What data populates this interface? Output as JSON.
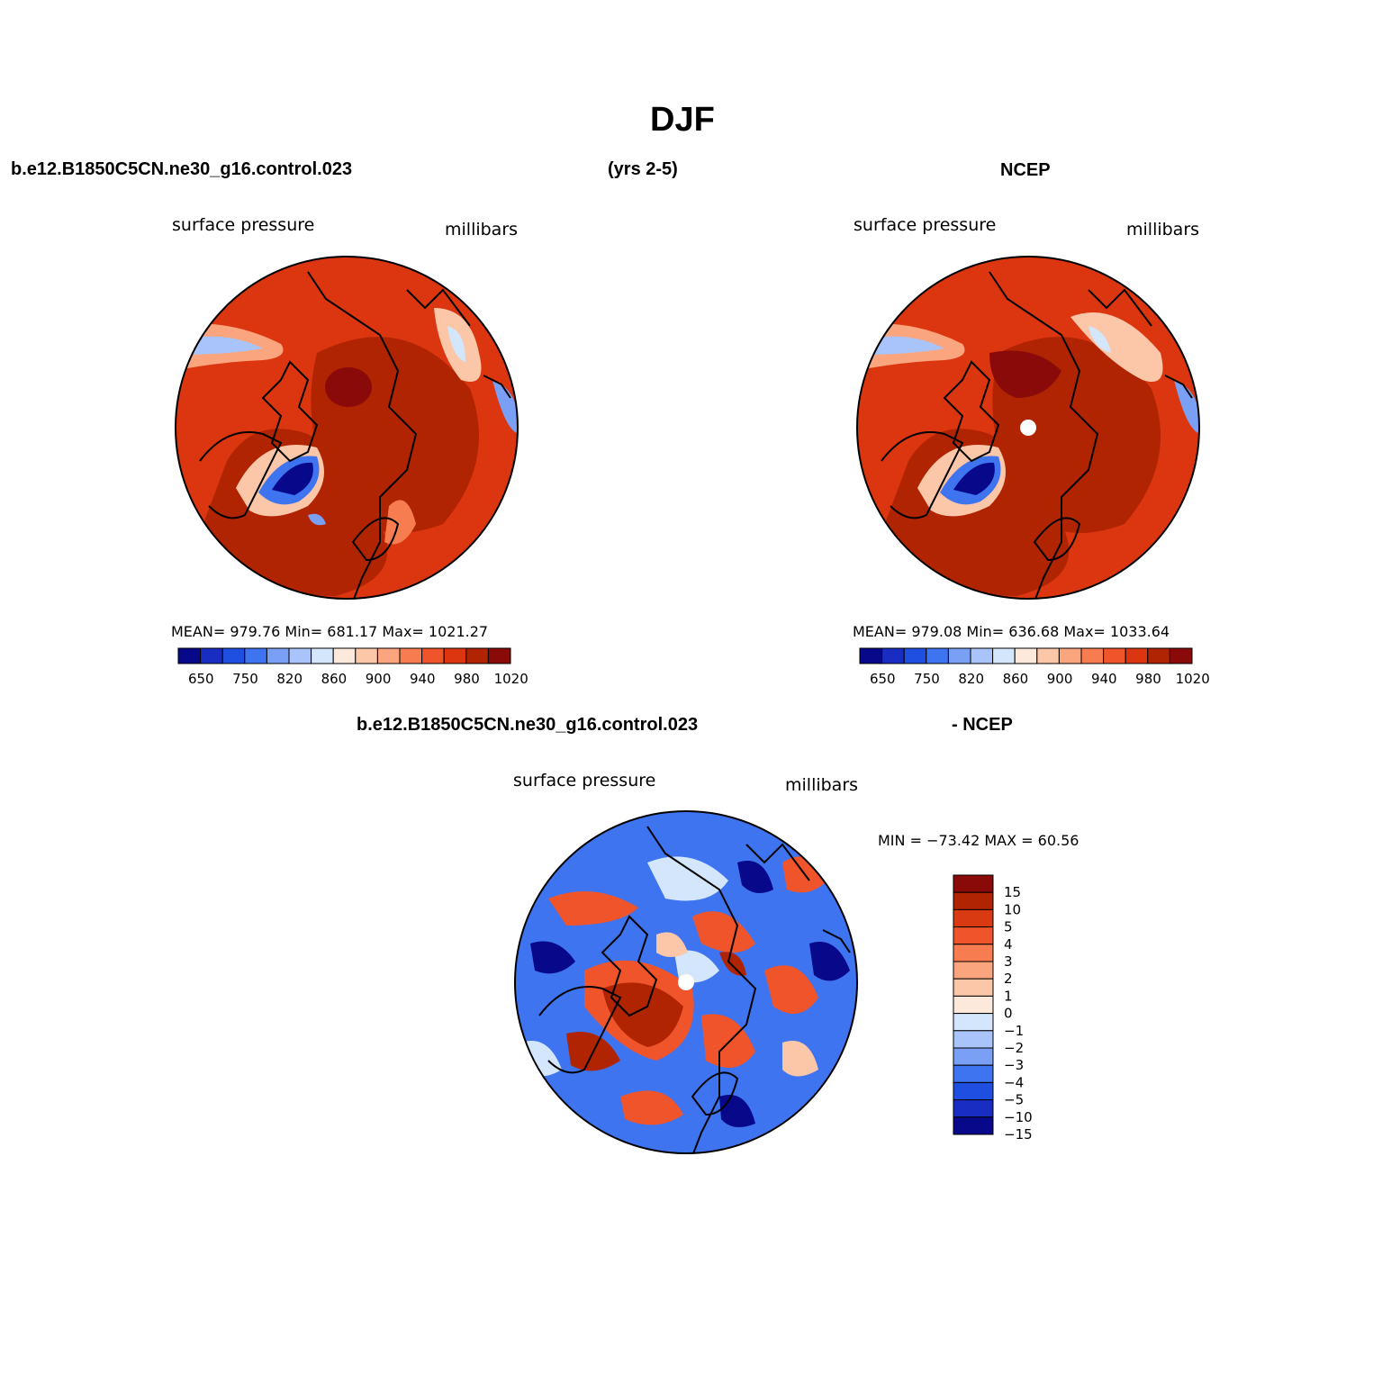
{
  "page": {
    "title": "DJF",
    "case_name": "b.e12.B1850C5CN.ne30_g16.control.023",
    "years": "(yrs 2-5)",
    "obs_name": "NCEP"
  },
  "panels": [
    {
      "left_label": "surface pressure",
      "right_label": "millibars",
      "stats_text": "MEAN= 979.76   Min= 681.17   Max= 1021.27",
      "mean": 979.76,
      "min": 681.17,
      "max": 1021.27,
      "pole_marker": false
    },
    {
      "left_label": "surface pressure",
      "right_label": "millibars",
      "stats_text": "MEAN= 979.08   Min= 636.68   Max= 1033.64",
      "mean": 979.08,
      "min": 636.68,
      "max": 1033.64,
      "pole_marker": true
    }
  ],
  "abs_colorbar": {
    "colors": [
      "#08088a",
      "#1a2dc2",
      "#1f4fe0",
      "#3f74f0",
      "#7aa0f5",
      "#a8c4fa",
      "#d4e6fc",
      "#fde9dc",
      "#fcc6a8",
      "#fba57e",
      "#f77c50",
      "#f0542a",
      "#dc3610",
      "#b02402",
      "#8a0a0a"
    ],
    "tick_labels": [
      "650",
      "750",
      "820",
      "860",
      "900",
      "940",
      "980",
      "1020"
    ]
  },
  "diff_panel": {
    "title_left": "b.e12.B1850C5CN.ne30_g16.control.023",
    "title_right": "- NCEP",
    "left_label": "surface pressure",
    "right_label": "millibars",
    "minmax_text": "MIN = −73.42 MAX =   60.56",
    "min": -73.42,
    "max": 60.56
  },
  "diff_colorbar": {
    "colors": [
      "#8a0a0a",
      "#b02402",
      "#d93a12",
      "#f0542a",
      "#f77c50",
      "#fba57e",
      "#fcc6a8",
      "#fde9dc",
      "#d4e6fc",
      "#a8c4fa",
      "#7aa0f5",
      "#3f74f0",
      "#1f4fe0",
      "#1a2dc2",
      "#08088a"
    ],
    "tick_labels": [
      "15",
      "10",
      "5",
      "4",
      "3",
      "2",
      "1",
      "0",
      "−1",
      "−2",
      "−3",
      "−4",
      "−5",
      "−10",
      "−15"
    ]
  }
}
